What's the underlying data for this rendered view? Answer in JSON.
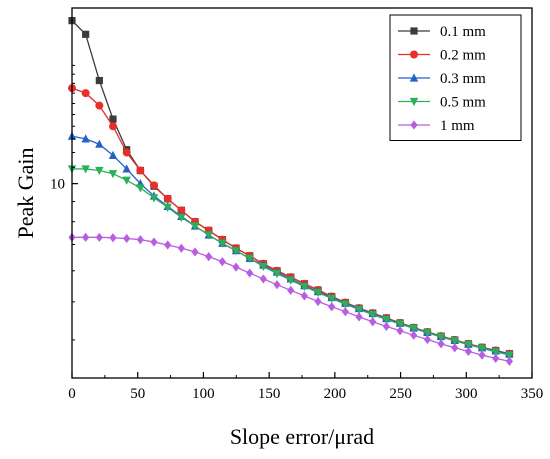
{
  "chart_data": {
    "type": "line",
    "xlabel": "Slope error/μrad",
    "ylabel": "Peak Gain",
    "xlim": [
      0,
      350
    ],
    "ylim": [
      3.2,
      28
    ],
    "yscale": "log",
    "xticks": [
      0,
      50,
      100,
      150,
      200,
      250,
      300,
      350
    ],
    "xtick_labels": [
      "0",
      "50",
      "100",
      "150",
      "200",
      "250",
      "300",
      "350"
    ],
    "yticks": [
      10
    ],
    "ytick_labels": [
      "10"
    ],
    "legend_position": "top-right",
    "grid": false,
    "x": [
      0,
      10.4,
      20.8,
      31.2,
      41.6,
      52.0,
      62.4,
      72.8,
      83.2,
      93.6,
      104.0,
      114.4,
      124.8,
      135.2,
      145.6,
      156.0,
      166.4,
      176.8,
      187.2,
      197.6,
      208.0,
      218.4,
      228.8,
      239.2,
      249.6,
      260.0,
      270.4,
      280.8,
      291.2,
      301.6,
      312.0,
      322.4,
      332.8
    ],
    "series": [
      {
        "name": "0.1 mm",
        "color": "#3c3c3c",
        "marker": "square",
        "values": [
          26.0,
          24.0,
          18.3,
          14.6,
          12.2,
          10.8,
          9.85,
          9.15,
          8.55,
          8.0,
          7.6,
          7.2,
          6.85,
          6.55,
          6.25,
          6.0,
          5.78,
          5.56,
          5.36,
          5.16,
          4.98,
          4.82,
          4.68,
          4.55,
          4.42,
          4.3,
          4.19,
          4.09,
          4.0,
          3.91,
          3.83,
          3.76,
          3.69
        ]
      },
      {
        "name": "0.2 mm",
        "color": "#e8302a",
        "marker": "circle",
        "values": [
          17.5,
          17.0,
          15.8,
          14.0,
          12.0,
          10.8,
          9.9,
          9.15,
          8.55,
          8.0,
          7.6,
          7.2,
          6.85,
          6.55,
          6.25,
          6.0,
          5.78,
          5.56,
          5.36,
          5.16,
          4.98,
          4.82,
          4.68,
          4.55,
          4.42,
          4.3,
          4.19,
          4.09,
          4.0,
          3.91,
          3.83,
          3.76,
          3.69
        ]
      },
      {
        "name": "0.3 mm",
        "color": "#2462c8",
        "marker": "triangle-up",
        "values": [
          13.2,
          13.0,
          12.6,
          11.8,
          10.9,
          10.0,
          9.3,
          8.75,
          8.25,
          7.8,
          7.4,
          7.05,
          6.75,
          6.45,
          6.2,
          5.95,
          5.72,
          5.5,
          5.31,
          5.13,
          4.96,
          4.81,
          4.67,
          4.53,
          4.41,
          4.29,
          4.18,
          4.08,
          3.99,
          3.9,
          3.82,
          3.75,
          3.68
        ]
      },
      {
        "name": "0.5 mm",
        "color": "#2bb05a",
        "marker": "triangle-down",
        "values": [
          10.9,
          10.9,
          10.8,
          10.6,
          10.2,
          9.75,
          9.2,
          8.7,
          8.2,
          7.8,
          7.4,
          7.05,
          6.75,
          6.45,
          6.15,
          5.9,
          5.68,
          5.47,
          5.28,
          5.1,
          4.93,
          4.78,
          4.64,
          4.51,
          4.39,
          4.28,
          4.17,
          4.07,
          3.98,
          3.89,
          3.81,
          3.73,
          3.66
        ]
      },
      {
        "name": "1 mm",
        "color": "#b85ee0",
        "marker": "diamond",
        "values": [
          7.3,
          7.3,
          7.3,
          7.28,
          7.25,
          7.2,
          7.1,
          6.98,
          6.85,
          6.7,
          6.52,
          6.33,
          6.13,
          5.92,
          5.72,
          5.53,
          5.35,
          5.18,
          5.01,
          4.86,
          4.72,
          4.58,
          4.45,
          4.33,
          4.22,
          4.11,
          4.01,
          3.91,
          3.82,
          3.74,
          3.66,
          3.59,
          3.53
        ]
      }
    ]
  }
}
